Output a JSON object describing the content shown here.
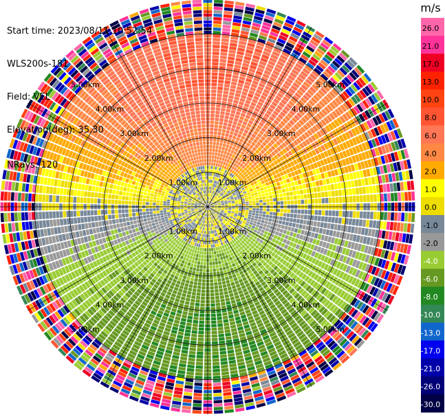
{
  "header": {
    "start_time": "Start time: 2023/08/11 10:52:54",
    "instrument": "WLS200s-181",
    "field": "Field: VEL",
    "elevation": "Elevation(deg): 35.30",
    "nrays": "NRays: 120"
  },
  "chart_data": {
    "type": "heatmap",
    "projection": "polar-ppi",
    "n_rays": 120,
    "range_rings_km": [
      1.0,
      2.0,
      3.0,
      4.0,
      5.0
    ],
    "range_ring_labels": [
      "1.00km",
      "2.00km",
      "3.00km",
      "4.00km",
      "5.00km"
    ],
    "max_range_km": 6.0,
    "spokes_deg": [
      0,
      30,
      60,
      90,
      120,
      150,
      180,
      210,
      240,
      270,
      300,
      330
    ],
    "colorbar": {
      "unit": "m/s",
      "tick_labels": [
        "26.0",
        "21.0",
        "17.0",
        "13.0",
        "10.0",
        "8.0",
        "6.0",
        "4.0",
        "2.0",
        "1.0",
        "0.0",
        "-1.0",
        "-2.0",
        "-4.0",
        "-6.0",
        "-8.0",
        "-10.0",
        "-13.0",
        "-17.0",
        "-21.0",
        "-26.0",
        "-30.0"
      ],
      "bands": [
        {
          "min": 26,
          "max": 30,
          "color": "#ff66aa"
        },
        {
          "min": 21,
          "max": 26,
          "color": "#ff3399"
        },
        {
          "min": 17,
          "max": 21,
          "color": "#ee0022"
        },
        {
          "min": 13,
          "max": 17,
          "color": "#ff2200"
        },
        {
          "min": 10,
          "max": 13,
          "color": "#ff4411"
        },
        {
          "min": 8,
          "max": 10,
          "color": "#ff5533"
        },
        {
          "min": 6,
          "max": 8,
          "color": "#ff7755"
        },
        {
          "min": 4,
          "max": 6,
          "color": "#ff8844"
        },
        {
          "min": 2,
          "max": 4,
          "color": "#ffaa00"
        },
        {
          "min": 1,
          "max": 2,
          "color": "#ffff00"
        },
        {
          "min": 0,
          "max": 1,
          "color": "#eedd00"
        },
        {
          "min": -1,
          "max": 0,
          "color": "#778899"
        },
        {
          "min": -2,
          "max": -1,
          "color": "#999999"
        },
        {
          "min": -4,
          "max": -2,
          "color": "#99cc33"
        },
        {
          "min": -6,
          "max": -4,
          "color": "#669922"
        },
        {
          "min": -8,
          "max": -6,
          "color": "#228822"
        },
        {
          "min": -10,
          "max": -8,
          "color": "#338855"
        },
        {
          "min": -13,
          "max": -10,
          "color": "#1166cc"
        },
        {
          "min": -17,
          "max": -13,
          "color": "#0000ee"
        },
        {
          "min": -21,
          "max": -17,
          "color": "#0000aa"
        },
        {
          "min": -26,
          "max": -21,
          "color": "#000077"
        },
        {
          "min": -30,
          "max": -26,
          "color": "#000044"
        }
      ]
    },
    "velocity_pattern": {
      "description_free": true,
      "north_value_ms": 8.0,
      "south_value_ms": -6.0,
      "noisy_beyond_km": 5.0
    }
  }
}
